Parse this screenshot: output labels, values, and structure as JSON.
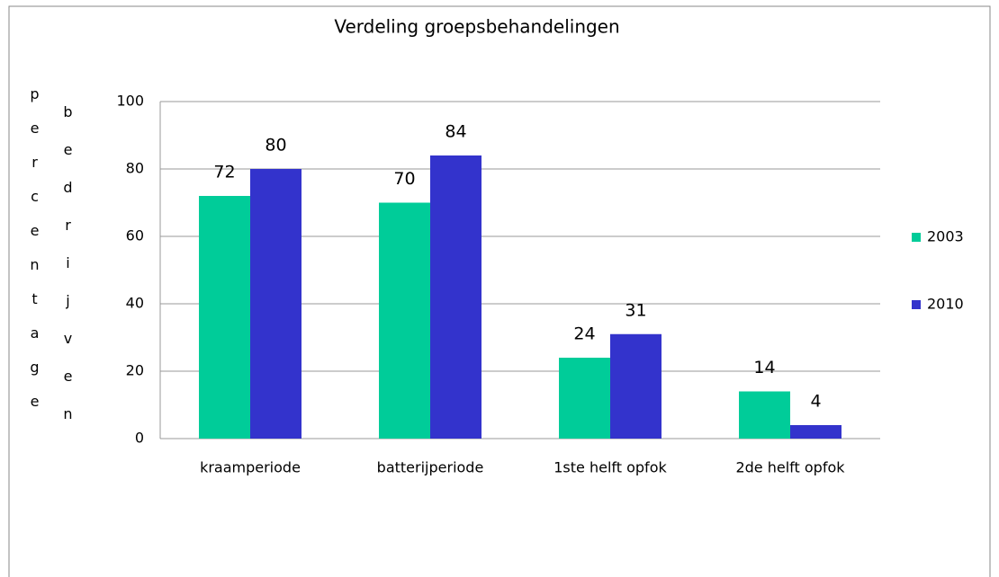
{
  "chart_data": {
    "type": "bar",
    "title": "Verdeling groepsbehandelingen",
    "ylabel": [
      "percentage",
      "bedrijven"
    ],
    "categories": [
      "kraamperiode",
      "batterijperiode",
      "1ste helft opfok",
      "2de helft opfok"
    ],
    "series": [
      {
        "name": "2003",
        "color": "#00cc99",
        "values": [
          72,
          70,
          24,
          14
        ]
      },
      {
        "name": "2010",
        "color": "#3333cc",
        "values": [
          80,
          84,
          31,
          4
        ]
      }
    ],
    "ylim": [
      0,
      100
    ],
    "yticks": [
      0,
      20,
      40,
      60,
      80,
      100
    ],
    "grid": true,
    "legend": "right"
  }
}
